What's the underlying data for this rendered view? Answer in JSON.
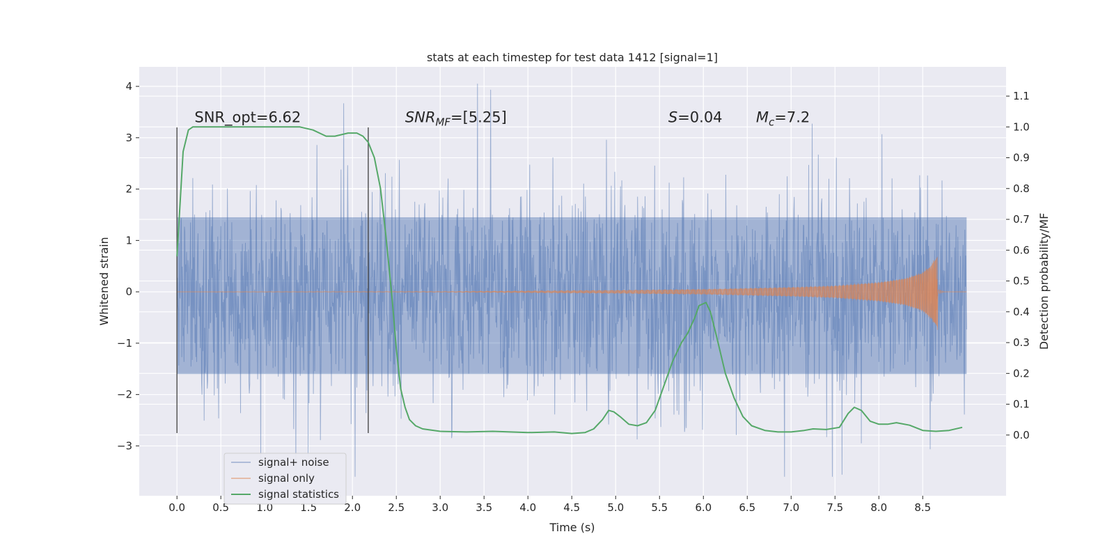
{
  "chart_data": {
    "type": "line",
    "title": "stats at each timestep for test data 1412 [signal=1]",
    "xlabel": "Time (s)",
    "ylabel_left": "Whitened strain",
    "ylabel_right": "Detection probability/MF",
    "xlim": [
      -0.43,
      9.45
    ],
    "ylim_left": [
      -3.97,
      4.38
    ],
    "ylim_right": [
      -0.197,
      1.195
    ],
    "x_ticks": [
      0.0,
      0.5,
      1.0,
      1.5,
      2.0,
      2.5,
      3.0,
      3.5,
      4.0,
      4.5,
      5.0,
      5.5,
      6.0,
      6.5,
      7.0,
      7.5,
      8.0,
      8.5
    ],
    "x_tick_labels": [
      "0.0",
      "0.5",
      "1.0",
      "1.5",
      "2.0",
      "2.5",
      "3.0",
      "3.5",
      "4.0",
      "4.5",
      "5.0",
      "5.5",
      "6.0",
      "6.5",
      "7.0",
      "7.5",
      "8.0",
      "8.5"
    ],
    "y_ticks_left": [
      -3,
      -2,
      -1,
      0,
      1,
      2,
      3,
      4
    ],
    "y_tick_labels_left": [
      "−3",
      "−2",
      "−1",
      "0",
      "1",
      "2",
      "3",
      "4"
    ],
    "y_ticks_right": [
      0.0,
      0.1,
      0.2,
      0.3,
      0.4,
      0.5,
      0.6,
      0.7,
      0.8,
      0.9,
      1.0,
      1.1
    ],
    "y_tick_labels_right": [
      "0.0",
      "0.1",
      "0.2",
      "0.3",
      "0.4",
      "0.5",
      "0.6",
      "0.7",
      "0.8",
      "0.9",
      "1.0",
      "1.1"
    ],
    "grid": true,
    "legend_position": "lower-left",
    "series": [
      {
        "name": "signal+ noise",
        "axis": "left",
        "color": "#4c72b0",
        "kind": "noise",
        "x_range": [
          0.0,
          9.0
        ],
        "typical_band": [
          -1.6,
          1.45
        ],
        "extreme_range": [
          -3.6,
          4.05
        ]
      },
      {
        "name": "signal only",
        "axis": "left",
        "color": "#dd8452",
        "kind": "chirp",
        "x_range": [
          0.0,
          8.67
        ],
        "peak_amplitude": 0.75,
        "envelope": {
          "x": [
            0.0,
            3.0,
            5.0,
            6.0,
            7.0,
            7.5,
            8.0,
            8.3,
            8.5,
            8.6,
            8.67,
            9.0
          ],
          "amp": [
            0.0,
            0.005,
            0.03,
            0.05,
            0.09,
            0.12,
            0.19,
            0.27,
            0.39,
            0.55,
            0.75,
            0.0
          ]
        }
      },
      {
        "name": "signal statistics",
        "axis": "right",
        "color": "#55a868",
        "x": [
          0.0,
          0.07,
          0.13,
          0.18,
          0.25,
          0.35,
          0.5,
          0.8,
          1.2,
          1.4,
          1.55,
          1.7,
          1.8,
          1.95,
          2.05,
          2.12,
          2.18,
          2.25,
          2.32,
          2.38,
          2.45,
          2.5,
          2.55,
          2.6,
          2.65,
          2.72,
          2.8,
          3.0,
          3.3,
          3.6,
          3.8,
          4.0,
          4.3,
          4.5,
          4.65,
          4.75,
          4.85,
          4.92,
          4.98,
          5.05,
          5.15,
          5.25,
          5.35,
          5.45,
          5.55,
          5.65,
          5.75,
          5.82,
          5.9,
          5.95,
          6.03,
          6.08,
          6.15,
          6.25,
          6.35,
          6.45,
          6.55,
          6.7,
          6.85,
          7.0,
          7.15,
          7.25,
          7.4,
          7.55,
          7.65,
          7.72,
          7.8,
          7.9,
          8.0,
          8.1,
          8.2,
          8.35,
          8.5,
          8.65,
          8.8,
          8.95
        ],
        "y": [
          0.58,
          0.92,
          0.99,
          1.0,
          1.0,
          1.0,
          1.0,
          1.0,
          1.0,
          1.0,
          0.99,
          0.97,
          0.97,
          0.98,
          0.98,
          0.97,
          0.95,
          0.9,
          0.8,
          0.65,
          0.45,
          0.28,
          0.15,
          0.09,
          0.05,
          0.03,
          0.02,
          0.012,
          0.01,
          0.012,
          0.01,
          0.008,
          0.01,
          0.005,
          0.008,
          0.02,
          0.05,
          0.08,
          0.075,
          0.06,
          0.035,
          0.03,
          0.04,
          0.08,
          0.16,
          0.24,
          0.3,
          0.33,
          0.38,
          0.42,
          0.43,
          0.4,
          0.32,
          0.2,
          0.12,
          0.06,
          0.03,
          0.015,
          0.01,
          0.01,
          0.015,
          0.02,
          0.018,
          0.025,
          0.07,
          0.09,
          0.08,
          0.045,
          0.035,
          0.035,
          0.04,
          0.032,
          0.015,
          0.012,
          0.015,
          0.025
        ]
      }
    ],
    "vertical_lines": [
      {
        "x": 0.0,
        "y_range": [
          -2.75,
          3.2
        ],
        "color": "#3a3a3a"
      },
      {
        "x": 2.18,
        "y_range": [
          -2.75,
          3.2
        ],
        "color": "#3a3a3a"
      }
    ],
    "annotations": [
      {
        "name": "snr-opt",
        "x": 0.2,
        "y": 3.3,
        "parts": [
          {
            "text": "SNR_opt=6.62"
          }
        ]
      },
      {
        "name": "snr-mf",
        "x": 2.6,
        "y": 3.3,
        "parts": [
          {
            "text": "SNR",
            "italic": true
          },
          {
            "text": "MF",
            "italic": true,
            "sub": true
          },
          {
            "text": "=[5.25]"
          }
        ]
      },
      {
        "name": "s-value",
        "x": 5.6,
        "y": 3.3,
        "parts": [
          {
            "text": "S",
            "italic": true
          },
          {
            "text": "=0.04"
          }
        ]
      },
      {
        "name": "mc-value",
        "x": 6.6,
        "y": 3.3,
        "parts": [
          {
            "text": "M",
            "italic": true
          },
          {
            "text": "c",
            "italic": true,
            "sub": true
          },
          {
            "text": "=7.2"
          }
        ]
      }
    ]
  }
}
